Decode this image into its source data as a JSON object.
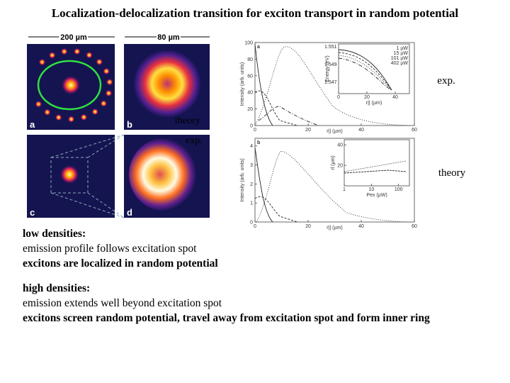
{
  "title": "Localization-delocalization transition for exciton transport in random potential",
  "figure": {
    "scale_bars": [
      "200 µm",
      "80 µm"
    ],
    "panel_labels": [
      "a",
      "b",
      "c",
      "d"
    ],
    "overlays": [
      "theory",
      "exp."
    ]
  },
  "plots": [
    {
      "label": "a",
      "ylabel": "Intensity (arb. units)",
      "xlabel": "r|| (µm)",
      "xlim": [
        0,
        60
      ],
      "xticks": [
        0,
        20,
        40,
        60
      ],
      "ylim": [
        0,
        100
      ],
      "yticks": [
        0,
        20,
        40,
        60,
        80,
        100
      ],
      "inset": {
        "ylabel": "Energy (eV)",
        "xlabel": "r|| (µm)",
        "yticks": [
          "1.551",
          "1.549",
          "1.547"
        ],
        "xticks": [
          0,
          20,
          40
        ],
        "legend": [
          "1 µW",
          "15 µW",
          "101 µW",
          "402 µW"
        ]
      }
    },
    {
      "label": "b",
      "ylabel": "Intensity (arb. units)",
      "xlabel": "r|| (µm)",
      "xlim": [
        0,
        60
      ],
      "xticks": [
        0,
        20,
        40,
        60
      ],
      "ylim": [
        0,
        4.4
      ],
      "yticks": [
        0,
        1,
        2,
        3,
        4
      ],
      "inset": {
        "ylabel": "rl (µm)",
        "xlabel": "Pex (µW)",
        "yticks": [
          20,
          40
        ],
        "xticks": [
          1,
          10,
          100
        ]
      }
    }
  ],
  "side_labels": [
    "exp.",
    "theory"
  ],
  "notes": [
    {
      "heading": "low densities:",
      "lines": [
        "emission profile follows excitation spot",
        "excitons are localized in random potential"
      ]
    },
    {
      "heading": "high densities:",
      "lines": [
        "emission extends well beyond excitation spot",
        "excitons screen random potential, travel away from excitation spot and form inner ring"
      ]
    }
  ]
}
